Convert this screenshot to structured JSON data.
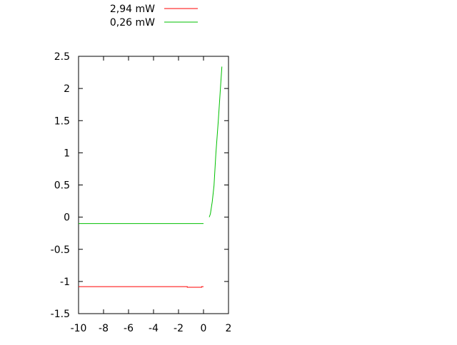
{
  "chart_data": {
    "type": "line",
    "title": "",
    "xlabel": "",
    "ylabel": "",
    "xlim": [
      -10,
      2
    ],
    "ylim": [
      -1.5,
      2.5
    ],
    "xticks": [
      "-10",
      "-8",
      "-6",
      "-4",
      "-2",
      "0",
      "2"
    ],
    "yticks": [
      "-1.5",
      "-1",
      "-0.5",
      "0",
      "0.5",
      "1",
      "1.5",
      "2",
      "2.5"
    ],
    "grid": false,
    "legend_position": "top",
    "series": [
      {
        "name": "2,94 mW",
        "color": "#ff0000",
        "points": [
          [
            -10,
            -1.08
          ],
          [
            -1.3,
            -1.08
          ],
          [
            -1.3,
            -1.09
          ],
          [
            -0.15,
            -1.09
          ],
          [
            -0.15,
            -1.08
          ],
          [
            0.0,
            -1.08
          ]
        ]
      },
      {
        "name": "0,26 mW",
        "color": "#00c000",
        "segments": [
          [
            [
              -10,
              -0.1
            ],
            [
              0.0,
              -0.1
            ]
          ],
          [
            [
              0.46,
              0.0
            ],
            [
              0.55,
              0.05
            ],
            [
              0.7,
              0.24
            ],
            [
              0.84,
              0.49
            ],
            [
              0.99,
              0.99
            ],
            [
              1.18,
              1.49
            ],
            [
              1.35,
              1.99
            ],
            [
              1.47,
              2.34
            ]
          ]
        ]
      }
    ]
  }
}
